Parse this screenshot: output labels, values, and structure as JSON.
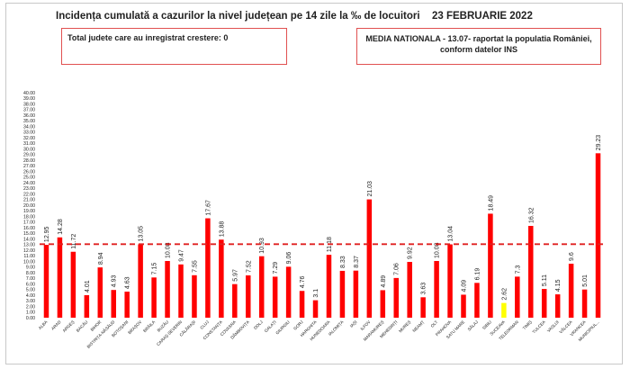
{
  "header": {
    "title": "Incidența cumulată a cazurilor la nivel județean pe 14 zile la ‰ de locuitori",
    "date": "23 FEBRUARIE 2022"
  },
  "info_boxes": {
    "growth_text": "Total judete care au inregistrat crestere: 0",
    "national_line1": "MEDIA NATIONALA - 13.07-  raportat la populatia României,",
    "national_line2": "conform datelor INS"
  },
  "chart_data": {
    "type": "bar",
    "title": "Incidența cumulată a cazurilor la nivel județean pe 14 zile la ‰ de locuitori",
    "categories": [
      "ALBA",
      "ARAD",
      "ARGEȘ",
      "BACĂU",
      "BIHOR",
      "BISTRIȚA-NĂSĂUD",
      "BOTOȘANI",
      "BRAȘOV",
      "BRĂILA",
      "BUZĂU",
      "CARAȘ-SEVERIN",
      "CĂLĂRAȘI",
      "CLUJ",
      "CONSTANȚA",
      "COVASNA",
      "DÂMBOVIȚA",
      "DOLJ",
      "GALAȚI",
      "GIURGIU",
      "GORJ",
      "HARGHITA",
      "HUNEDOARA",
      "IALOMIȚA",
      "IAȘI",
      "ILFOV",
      "MARAMUREȘ",
      "MEHEDINȚI",
      "MUREȘ",
      "NEAMȚ",
      "OLT",
      "PRAHOVA",
      "SATU MARE",
      "SĂLAJ",
      "SIBIU",
      "SUCEAVA",
      "TELEORMAN",
      "TIMIȘ",
      "TULCEA",
      "VASLUI",
      "VÂLCEA",
      "VRANCEA",
      "MUNICIPIUL..."
    ],
    "value_labels": [
      "12.95",
      "14.28",
      "11.72",
      "4.01",
      "8.94",
      "4.93",
      "4.63",
      "13.05",
      "7.15",
      "10.08",
      "9.47",
      "7.55",
      "17.67",
      "13.88",
      "5.97",
      "7.52",
      "10.93",
      "7.29",
      "9.06",
      "4.76",
      "3.1",
      "11.18",
      "8.33",
      "8.37",
      "21.03",
      "4.89",
      "7.06",
      "9.92",
      "3.63",
      "10.08",
      "13.04",
      "4.09",
      "6.19",
      "18.49",
      "2.62",
      "7.3",
      "16.32",
      "5.11",
      "4.15",
      "9.6",
      "5.01",
      "29.23"
    ],
    "values": [
      12.95,
      14.28,
      11.72,
      4.01,
      8.94,
      4.93,
      4.63,
      13.05,
      7.15,
      10.08,
      9.47,
      7.55,
      17.67,
      13.88,
      5.97,
      7.52,
      10.93,
      7.29,
      9.06,
      4.76,
      3.1,
      11.18,
      8.33,
      8.37,
      21.03,
      4.89,
      7.06,
      9.92,
      3.63,
      10.08,
      13.04,
      4.09,
      6.19,
      18.49,
      2.62,
      7.3,
      16.32,
      5.11,
      4.15,
      9.6,
      5.01,
      29.23
    ],
    "highlight_index": 34,
    "reference_line": 13.07,
    "ylim": [
      0,
      40
    ],
    "ytick_step": 1,
    "xlabel": "",
    "ylabel": "",
    "grid": false,
    "colors": {
      "bar": "#ff0000",
      "highlight": "#ffff00",
      "reference": "#e02020",
      "text": "#222222"
    }
  }
}
